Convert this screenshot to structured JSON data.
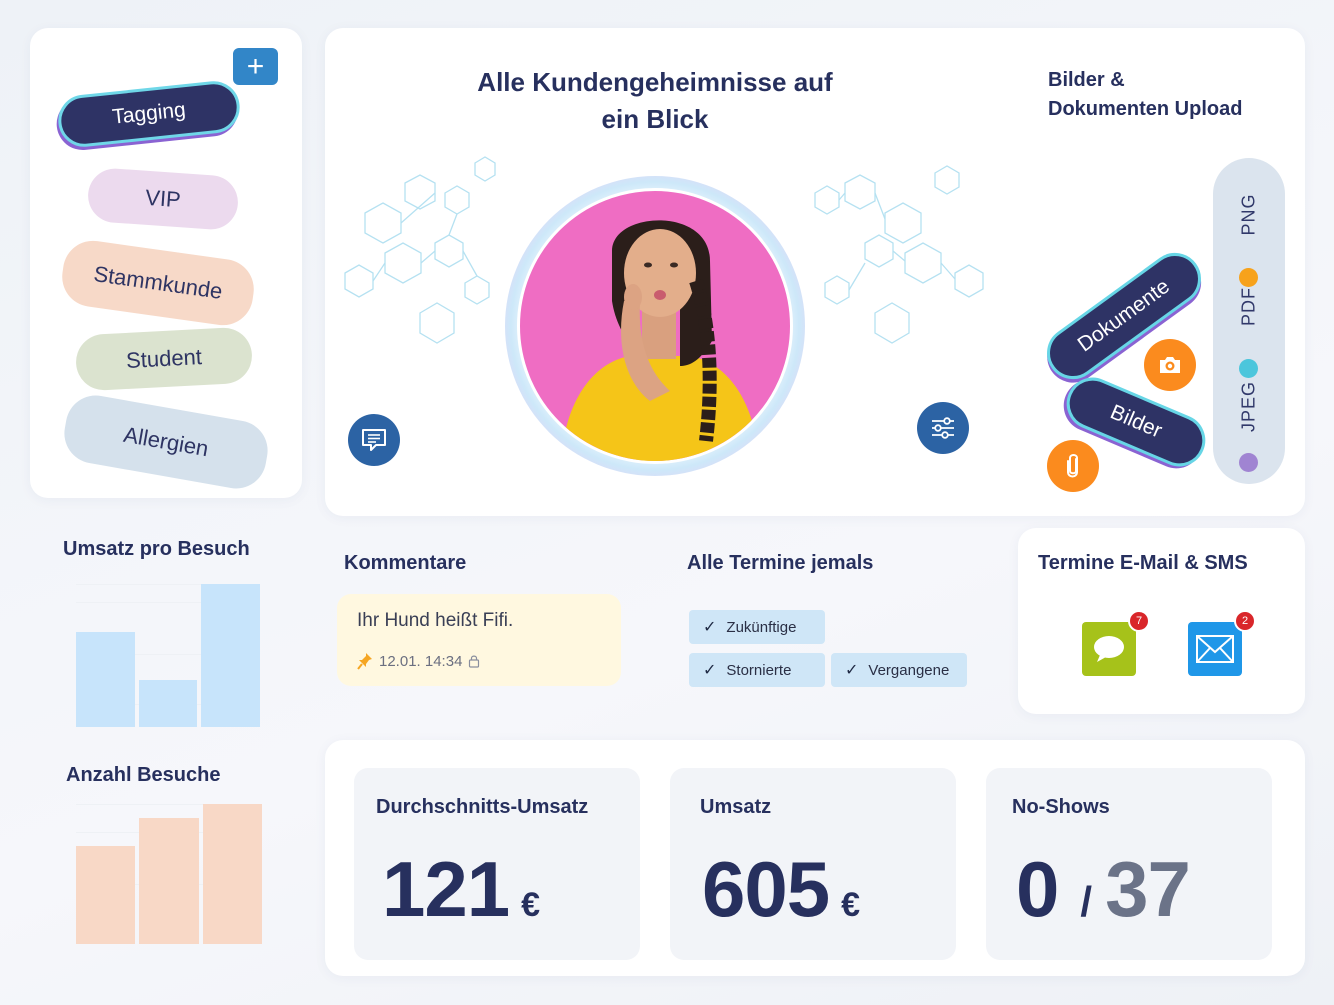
{
  "tags": {
    "title": "Tagging",
    "add_label": "+",
    "items": [
      "VIP",
      "Stammkunde",
      "Student",
      "Allergien"
    ]
  },
  "hero": {
    "title": "Alle Kundengeheimnisse auf ein Blick",
    "portrait_icon": "woman-portrait",
    "comment_icon": "comment-icon",
    "settings_icon": "sliders-icon"
  },
  "upload": {
    "title_line1": "Bilder &",
    "title_line2": "Dokumenten Upload",
    "dokumente_label": "Dokumente",
    "bilder_label": "Bilder",
    "formats": [
      {
        "label": "PNG",
        "color": "#f7a21b"
      },
      {
        "label": "PDF",
        "color": "#4cc6dc"
      },
      {
        "label": "JPEG",
        "color": "#a084d2"
      }
    ]
  },
  "umsatz_pro_besuch": {
    "title": "Umsatz pro Besuch",
    "color": "#c7e4fb"
  },
  "anzahl_besuche": {
    "title": "Anzahl Besuche",
    "color": "#f8d8c6"
  },
  "chart_data": [
    {
      "type": "bar",
      "title": "Umsatz pro Besuch",
      "categories": [
        "",
        "",
        ""
      ],
      "values": [
        94,
        47,
        142
      ],
      "xlabel": "",
      "ylabel": ""
    },
    {
      "type": "bar",
      "title": "Anzahl Besuche",
      "categories": [
        "",
        "",
        ""
      ],
      "values": [
        98,
        126,
        140
      ],
      "xlabel": "",
      "ylabel": ""
    }
  ],
  "kommentare": {
    "title": "Kommentare",
    "comment_text": "Ihr Hund heißt Fifi.",
    "comment_date": "12.01. 14:34",
    "pin_icon": "pin-icon",
    "lock_icon": "lock-icon"
  },
  "termine": {
    "title": "Alle Termine jemals",
    "filters": [
      "Zukünftige",
      "Stornierte",
      "Vergangene"
    ]
  },
  "messages": {
    "title": "Termine E-Mail & SMS",
    "sms_count": "7",
    "email_count": "2",
    "sms_color": "#a6c21a",
    "email_color": "#1f97e8"
  },
  "kpis": {
    "durchschnitt_label": "Durchschnitts-Umsatz",
    "durchschnitt_value": "121",
    "durchschnitt_unit": "€",
    "umsatz_label": "Umsatz",
    "umsatz_value": "605",
    "umsatz_unit": "€",
    "noshows_label": "No-Shows",
    "noshows_value": "0",
    "noshows_sep": "/",
    "noshows_total": "37"
  }
}
